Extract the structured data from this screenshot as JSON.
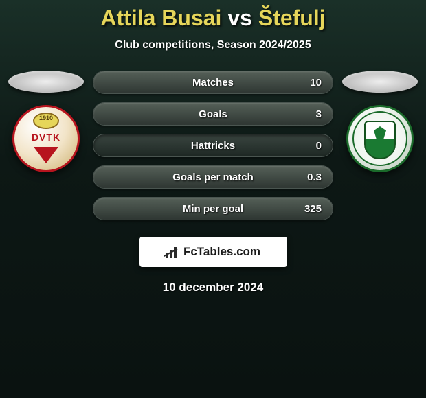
{
  "title": {
    "player1": "Attila Busai",
    "vs": "vs",
    "player2": "Štefulj"
  },
  "subtitle": "Club competitions, Season 2024/2025",
  "left_badge": {
    "year": "1910",
    "text": "DVTK"
  },
  "stats": [
    {
      "label": "Matches",
      "value": "10",
      "fill_pct": 100
    },
    {
      "label": "Goals",
      "value": "3",
      "fill_pct": 100
    },
    {
      "label": "Hattricks",
      "value": "0",
      "fill_pct": 0
    },
    {
      "label": "Goals per match",
      "value": "0.3",
      "fill_pct": 100
    },
    {
      "label": "Min per goal",
      "value": "325",
      "fill_pct": 100
    }
  ],
  "brand": "FcTables.com",
  "date": "10 december 2024",
  "colors": {
    "accent_yellow": "#e6d65a",
    "pill_bg_top": "#3a4540",
    "pill_bg_bot": "#1e2824",
    "pill_fill_top": "#556058",
    "pill_fill_bot": "#2e3632",
    "badge_left_border": "#b7141e",
    "badge_right_border": "#1a6a2a"
  }
}
